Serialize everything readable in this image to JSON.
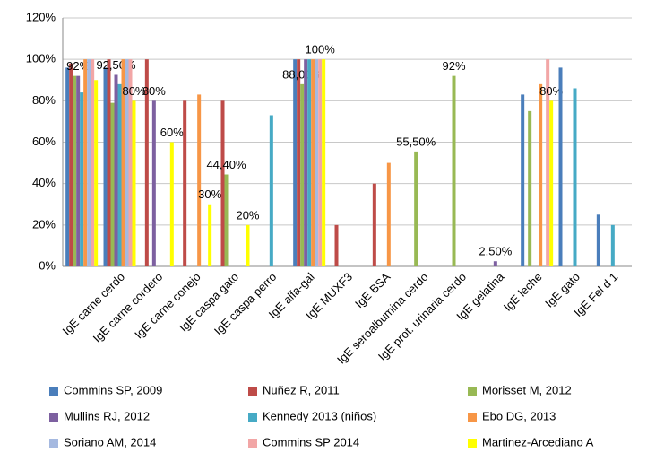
{
  "chart_data": {
    "type": "bar",
    "categories": [
      null,
      "IgE carne cerdo",
      "IgE carne cordero",
      "IgE carne conejo",
      "IgE caspa gato",
      "IgE caspa perro",
      "IgE alfa-gal",
      "IgE MUXF3",
      "IgE BSA",
      "IgE seroalbumina cerdo",
      "IgE prot. urinaria cerdo",
      "IgE gelatina",
      "IgE leche",
      "IgE gato",
      "IgE Fel d 1"
    ],
    "series": [
      {
        "name": "Commins SP, 2009",
        "color": "#4a7ebb",
        "values": [
          96,
          96,
          null,
          null,
          null,
          null,
          100,
          null,
          null,
          null,
          null,
          null,
          83,
          96,
          25
        ]
      },
      {
        "name": "Nuñez R, 2011",
        "color": "#be4b48",
        "values": [
          98,
          100,
          100,
          80,
          80,
          null,
          100,
          20,
          40,
          null,
          null,
          null,
          null,
          null,
          null
        ]
      },
      {
        "name": "Morisset M, 2012",
        "color": "#98b954",
        "values": [
          92,
          79,
          null,
          null,
          44.4,
          null,
          88,
          null,
          null,
          55.5,
          92,
          null,
          75,
          null,
          null
        ],
        "value_labels": [
          null,
          null,
          null,
          null,
          "44,40%",
          null,
          "88,00%",
          null,
          null,
          "55,50%",
          "92%",
          null,
          null,
          null,
          null
        ]
      },
      {
        "name": "Mullins RJ, 2012",
        "color": "#7d60a0",
        "values": [
          92,
          92.5,
          80,
          null,
          null,
          null,
          100,
          null,
          null,
          null,
          null,
          2.5,
          null,
          null,
          null
        ],
        "value_labels": [
          "92%",
          "92,50%",
          "80%",
          null,
          null,
          null,
          null,
          null,
          null,
          null,
          null,
          "2,50%",
          null,
          null,
          null
        ]
      },
      {
        "name": "Kennedy 2013 (niños)",
        "color": "#46aac5",
        "values": [
          84,
          88,
          null,
          null,
          null,
          73,
          100,
          null,
          null,
          null,
          null,
          null,
          null,
          86,
          20
        ]
      },
      {
        "name": "Ebo DG, 2013",
        "color": "#f79646",
        "values": [
          100,
          100,
          null,
          83,
          null,
          null,
          100,
          null,
          50,
          null,
          null,
          null,
          88,
          null,
          null
        ]
      },
      {
        "name": "Soriano AM, 2014",
        "color": "#a5b9e0",
        "values": [
          100,
          100,
          null,
          null,
          null,
          null,
          100,
          null,
          null,
          null,
          null,
          null,
          null,
          null,
          null
        ]
      },
      {
        "name": "Commins SP 2014",
        "color": "#f2a6a6",
        "values": [
          100,
          100,
          null,
          null,
          null,
          null,
          100,
          null,
          null,
          null,
          null,
          null,
          100,
          null,
          null
        ],
        "value_labels": [
          null,
          null,
          null,
          null,
          null,
          null,
          "100%",
          null,
          null,
          null,
          null,
          null,
          null,
          null,
          null
        ]
      },
      {
        "name": "Martinez-Arcediano A",
        "color": "#ffff00",
        "values": [
          90,
          80,
          60,
          30,
          20,
          null,
          100,
          null,
          null,
          null,
          null,
          null,
          80,
          null,
          null
        ],
        "value_labels": [
          null,
          "80%",
          "60%",
          "30%",
          "20%",
          null,
          null,
          null,
          null,
          null,
          null,
          null,
          "80%",
          null,
          null
        ]
      }
    ],
    "ylim": [
      0,
      120
    ],
    "yticks": [
      {
        "value": 0,
        "label": "0%"
      },
      {
        "value": 20,
        "label": "20%"
      },
      {
        "value": 40,
        "label": "40%"
      },
      {
        "value": 60,
        "label": "60%"
      },
      {
        "value": 80,
        "label": "80%"
      },
      {
        "value": 100,
        "label": "100%"
      },
      {
        "value": 120,
        "label": "120%"
      }
    ],
    "grid": true,
    "legend": "bottom"
  }
}
